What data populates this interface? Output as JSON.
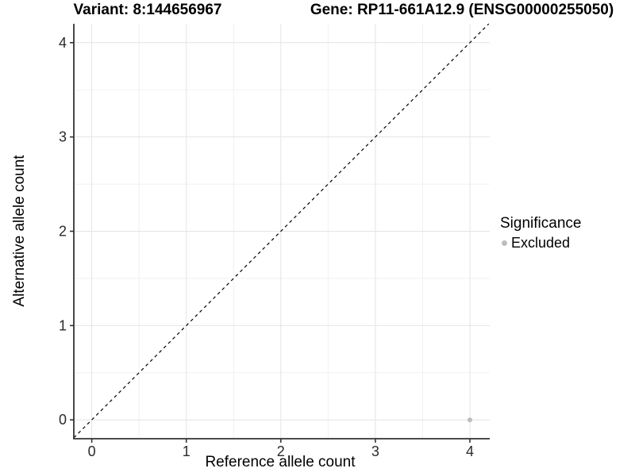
{
  "header": {
    "title_left": "Variant: 8:144656967",
    "title_right": "Gene: RP11-661A12.9 (ENSG00000255050)"
  },
  "chart_data": {
    "type": "scatter",
    "title_left": "Variant: 8:144656967",
    "title_right": "Gene: RP11-661A12.9 (ENSG00000255050)",
    "xlabel": "Reference allele count",
    "ylabel": "Alternative allele count",
    "xlim": [
      -0.19,
      4.21
    ],
    "ylim": [
      -0.2,
      4.2
    ],
    "x_ticks": [
      0,
      1,
      2,
      3,
      4
    ],
    "y_ticks": [
      0,
      1,
      2,
      3,
      4
    ],
    "minor_gridlines_x": [
      0.5,
      1.5,
      2.5,
      3.5
    ],
    "minor_gridlines_y": [
      0.5,
      1.5,
      2.5,
      3.5
    ],
    "grid_on": true,
    "reference_line": {
      "slope": 1,
      "intercept": 0,
      "style": "dashed",
      "color": "#000000"
    },
    "series": [
      {
        "name": "Excluded",
        "color": "#bdbdbd",
        "points": [
          [
            4,
            0
          ]
        ]
      }
    ],
    "legend": {
      "title": "Significance",
      "position": "right",
      "items": [
        {
          "label": "Excluded",
          "color": "#bdbdbd"
        }
      ]
    },
    "colors": {
      "major_grid": "#e4e4e4",
      "minor_grid": "#f1f1f1",
      "axis_line": "#333333",
      "tick_text": "#2b2b2b"
    }
  }
}
